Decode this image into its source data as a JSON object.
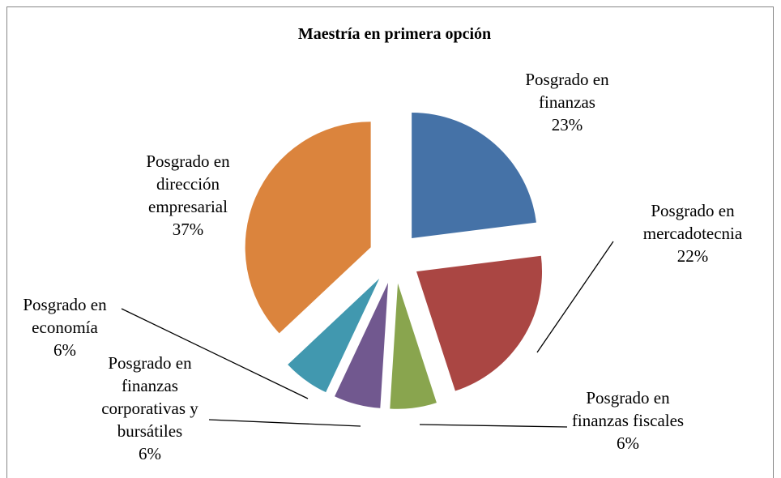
{
  "chart_data": {
    "type": "pie",
    "title": "Maestría en primera opción",
    "categories": [
      "Posgrado en finanzas",
      "Posgrado en mercadotecnia",
      "Posgrado en finanzas fiscales",
      "Posgrado en finanzas corporativas y bursátiles",
      "Posgrado en economía",
      "Posgrado en dirección empresarial"
    ],
    "values": [
      23,
      22,
      6,
      6,
      6,
      37
    ],
    "value_labels": [
      "23%",
      "22%",
      "6%",
      "6%",
      "6%",
      "37%"
    ],
    "colors": [
      "#4572a7",
      "#aa4643",
      "#89a54e",
      "#71588f",
      "#4198af",
      "#db843d"
    ]
  }
}
